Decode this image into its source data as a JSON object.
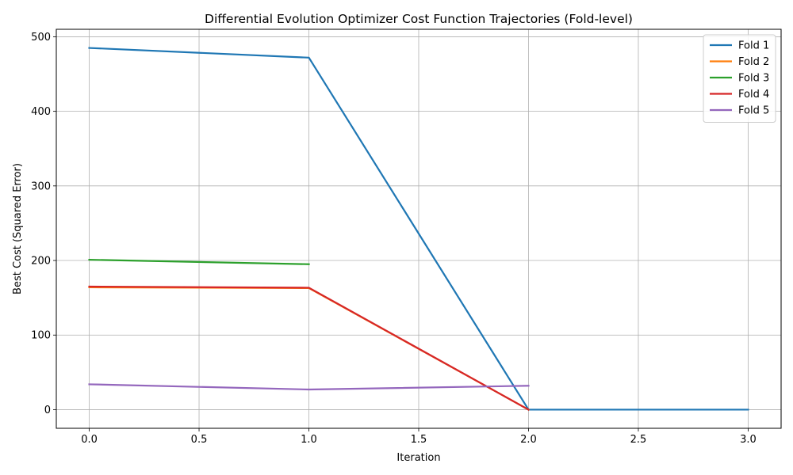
{
  "chart_data": {
    "type": "line",
    "title": "Differential Evolution Optimizer Cost Function Trajectories (Fold-level)",
    "xlabel": "Iteration",
    "ylabel": "Best Cost (Squared Error)",
    "xlim": [
      -0.15,
      3.15
    ],
    "ylim": [
      -25,
      510
    ],
    "xticks": [
      0.0,
      0.5,
      1.0,
      1.5,
      2.0,
      2.5,
      3.0
    ],
    "xtick_labels": [
      "0.0",
      "0.5",
      "1.0",
      "1.5",
      "2.0",
      "2.5",
      "3.0"
    ],
    "yticks": [
      0,
      100,
      200,
      300,
      400,
      500
    ],
    "ytick_labels": [
      "0",
      "100",
      "200",
      "300",
      "400",
      "500"
    ],
    "grid": true,
    "legend_position": "top-right",
    "series": [
      {
        "name": "Fold 1",
        "color": "#1f77b4",
        "x": [
          0,
          1,
          2,
          3
        ],
        "values": [
          485,
          472,
          0,
          0
        ]
      },
      {
        "name": "Fold 2",
        "color": "#ff7f0e",
        "x": [
          0,
          1,
          2
        ],
        "values": [
          164,
          163,
          0
        ]
      },
      {
        "name": "Fold 3",
        "color": "#2ca02c",
        "x": [
          0,
          1
        ],
        "values": [
          201,
          195
        ]
      },
      {
        "name": "Fold 4",
        "color": "#d62728",
        "x": [
          0,
          1,
          2
        ],
        "values": [
          165,
          163.5,
          0
        ]
      },
      {
        "name": "Fold 5",
        "color": "#9467bd",
        "x": [
          0,
          1,
          2
        ],
        "values": [
          34,
          27,
          32
        ]
      }
    ]
  }
}
